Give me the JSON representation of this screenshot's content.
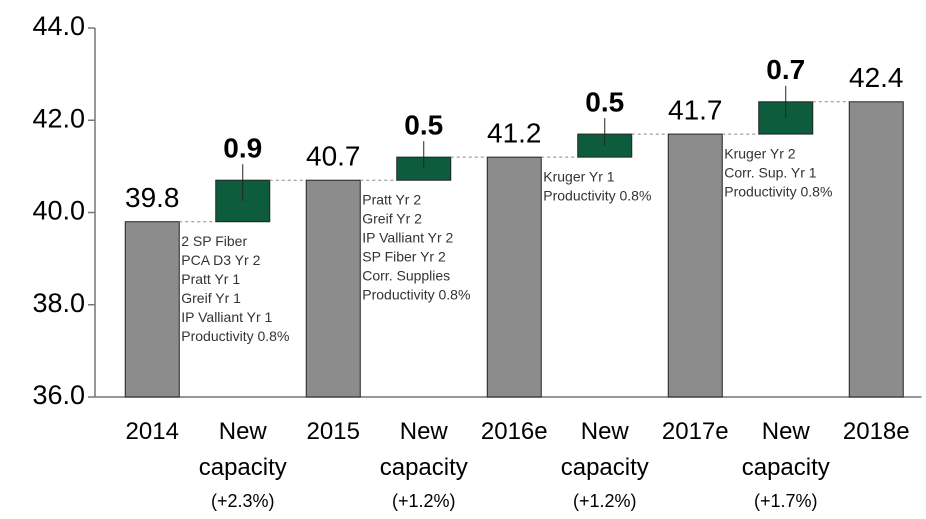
{
  "chart_data": {
    "type": "waterfall",
    "categories": [
      "2014",
      "New capacity (+2.3%)",
      "2015",
      "New capacity (+1.2%)",
      "2016e",
      "New capacity (+1.2%)",
      "2017e",
      "New capacity (+1.7%)",
      "2018e"
    ],
    "values": [
      39.8,
      0.9,
      40.7,
      0.5,
      41.2,
      0.5,
      41.7,
      0.7,
      42.4
    ],
    "bar_types": [
      "total",
      "delta",
      "total",
      "delta",
      "total",
      "delta",
      "total",
      "delta",
      "total"
    ],
    "colors": {
      "total": "#8c8c8c",
      "delta": "#0e5c3e"
    },
    "notes": [
      null,
      [
        "2 SP Fiber",
        "PCA D3 Yr 2",
        "Pratt Yr 1",
        "Greif Yr 1",
        "IP Valliant Yr 1",
        "Productivity 0.8%"
      ],
      null,
      [
        "Pratt Yr 2",
        "Greif Yr 2",
        "IP Valliant Yr 2",
        "SP Fiber Yr 2",
        "Corr. Supplies",
        "Productivity 0.8%"
      ],
      null,
      [
        "Kruger Yr 1",
        "Productivity 0.8%"
      ],
      null,
      [
        "Kruger Yr 2",
        "Corr. Sup. Yr 1",
        "Productivity 0.8%"
      ],
      null
    ],
    "ylim": [
      36,
      44
    ],
    "yticks": [
      {
        "value": 36,
        "label": "36.0"
      },
      {
        "value": 38,
        "label": "38.0"
      },
      {
        "value": 40,
        "label": "40.0"
      },
      {
        "value": 42,
        "label": "42.0"
      },
      {
        "value": 44,
        "label": "44.0"
      }
    ]
  }
}
